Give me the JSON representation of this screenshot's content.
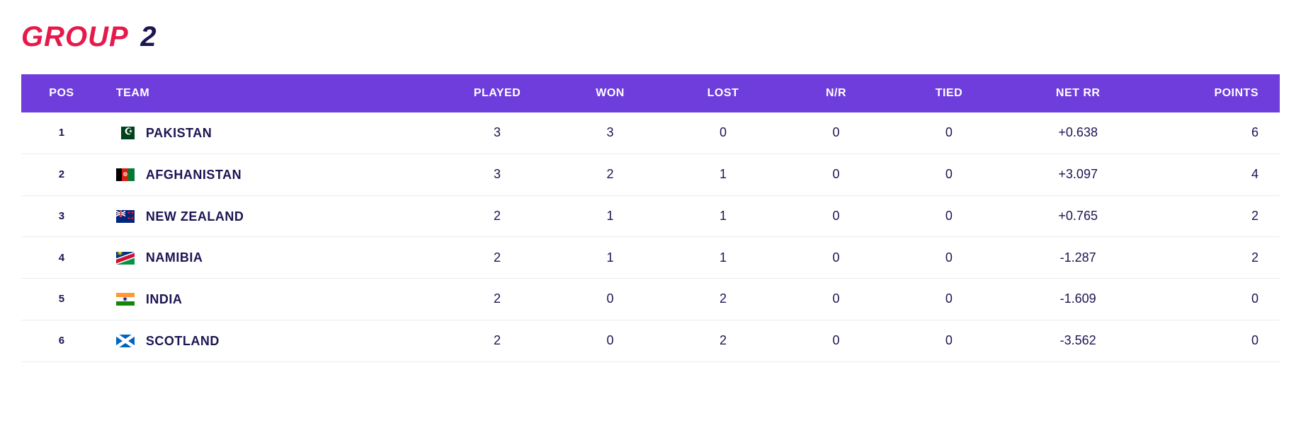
{
  "colors": {
    "accent": "#e6194b",
    "dark": "#1b1553",
    "header_bg": "#6e3ddc",
    "row_border": "#ececf4"
  },
  "title": {
    "word1": "GROUP",
    "word2": "2"
  },
  "columns": {
    "pos": "POS",
    "team": "TEAM",
    "played": "PLAYED",
    "won": "WON",
    "lost": "LOST",
    "nr": "N/R",
    "tied": "TIED",
    "netrr": "NET RR",
    "points": "POINTS"
  },
  "rows": [
    {
      "pos": "1",
      "flag": "pk",
      "team": "PAKISTAN",
      "played": "3",
      "won": "3",
      "lost": "0",
      "nr": "0",
      "tied": "0",
      "netrr": "+0.638",
      "points": "6"
    },
    {
      "pos": "2",
      "flag": "af",
      "team": "AFGHANISTAN",
      "played": "3",
      "won": "2",
      "lost": "1",
      "nr": "0",
      "tied": "0",
      "netrr": "+3.097",
      "points": "4"
    },
    {
      "pos": "3",
      "flag": "nz",
      "team": "NEW ZEALAND",
      "played": "2",
      "won": "1",
      "lost": "1",
      "nr": "0",
      "tied": "0",
      "netrr": "+0.765",
      "points": "2"
    },
    {
      "pos": "4",
      "flag": "na",
      "team": "NAMIBIA",
      "played": "2",
      "won": "1",
      "lost": "1",
      "nr": "0",
      "tied": "0",
      "netrr": "-1.287",
      "points": "2"
    },
    {
      "pos": "5",
      "flag": "in",
      "team": "INDIA",
      "played": "2",
      "won": "0",
      "lost": "2",
      "nr": "0",
      "tied": "0",
      "netrr": "-1.609",
      "points": "0"
    },
    {
      "pos": "6",
      "flag": "sc",
      "team": "SCOTLAND",
      "played": "2",
      "won": "0",
      "lost": "2",
      "nr": "0",
      "tied": "0",
      "netrr": "-3.562",
      "points": "0"
    }
  ]
}
